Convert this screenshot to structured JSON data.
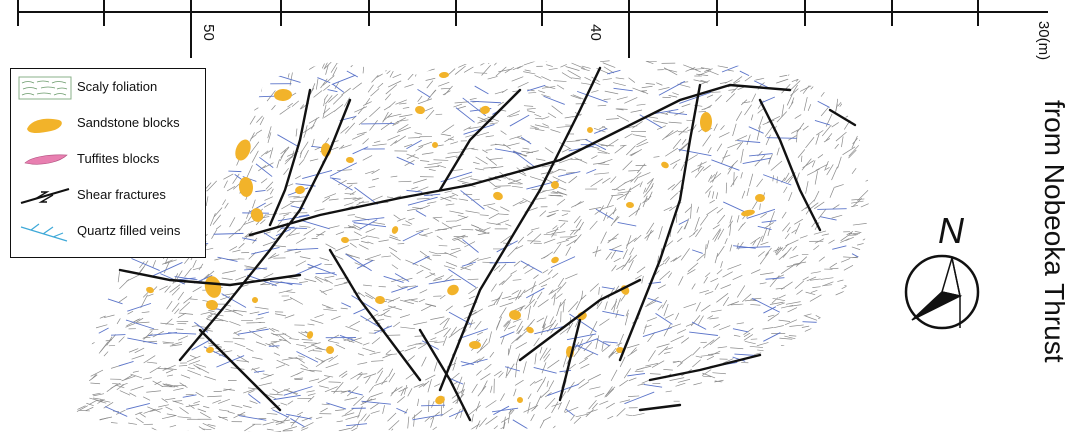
{
  "scale_bar": {
    "labels": {
      "l50": "50",
      "l40": "40",
      "l30": "30(m)"
    }
  },
  "vertical_title": "from Nobeoka Thrust",
  "north_arrow": {
    "letter": "N"
  },
  "legend": {
    "items": [
      {
        "label": "Scaly foliation",
        "symbol": "foliation-symbol-icon"
      },
      {
        "label": "Sandstone blocks",
        "symbol": "sandstone-block-icon",
        "color": "#F2B32A"
      },
      {
        "label": "Tuffites blocks",
        "symbol": "tuffite-block-icon",
        "color": "#E87FB0"
      },
      {
        "label": "Shear fractures",
        "symbol": "shear-fracture-icon",
        "color": "#111111"
      },
      {
        "label": "Quartz filled veins",
        "symbol": "quartz-vein-icon",
        "color": "#3FA9D8"
      }
    ]
  },
  "colors": {
    "foliation": "#8a8a8a",
    "sandstone": "#F2B32A",
    "tuffite": "#E87FB0",
    "fracture": "#111111",
    "quartz_veins": "#5b74c9",
    "legend_quartz": "#3FA9D8"
  }
}
